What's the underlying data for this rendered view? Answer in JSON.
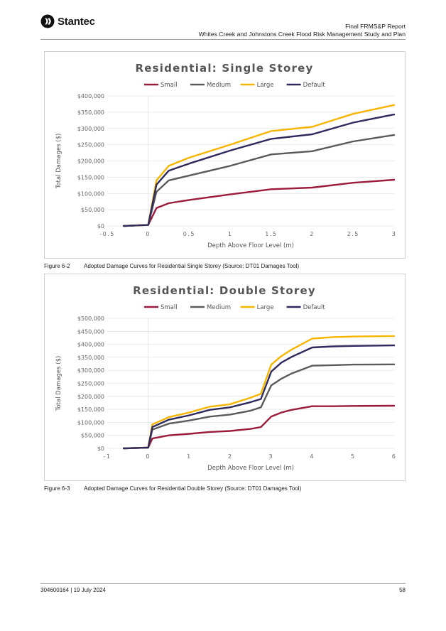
{
  "header": {
    "logo_text": "Stantec",
    "report_title": "Final FRMS&P Report",
    "report_subtitle": "Whites Creek and Johnstons Creek Flood Risk Management Study and Plan"
  },
  "footer": {
    "doc_ref": "304600164 | 19 July 2024",
    "page_number": "58"
  },
  "colors": {
    "small": "#9b1b3b",
    "medium": "#5a5a5a",
    "large": "#f7b500",
    "default": "#2e2a5e"
  },
  "captions": [
    {
      "number": "Figure 6-2",
      "text": "Adopted Damage Curves for Residential Single Storey (Source: DT01 Damages Tool)"
    },
    {
      "number": "Figure 6-3",
      "text": "Adopted Damage Curves for Residential Double Storey (Source: DT01 Damages Tool)"
    }
  ],
  "chart_data": [
    {
      "type": "line",
      "title": "Residential: Single Storey",
      "xlabel": "Depth Above Floor Level (m)",
      "ylabel": "Total Damages ($)",
      "xlim": [
        -0.5,
        3
      ],
      "ylim": [
        0,
        400000
      ],
      "x_ticks": [
        -0.5,
        0,
        0.5,
        1,
        1.5,
        2,
        2.5,
        3
      ],
      "x_tick_labels": [
        "-0.5",
        "0",
        "0.5",
        "1",
        "1.5",
        "2",
        "2.5",
        "3"
      ],
      "y_ticks": [
        0,
        50000,
        100000,
        150000,
        200000,
        250000,
        300000,
        350000,
        400000
      ],
      "y_tick_labels": [
        "$0",
        "$50,000",
        "$100,000",
        "$150,000",
        "$200,000",
        "$250,000",
        "$300,000",
        "$350,000",
        "$400,000"
      ],
      "grid": true,
      "legend_position": "top",
      "series": [
        {
          "name": "Small",
          "color": "#9b1b3b",
          "x": [
            -0.3,
            0,
            0.1,
            0.25,
            0.5,
            1,
            1.5,
            2,
            2.5,
            3
          ],
          "y": [
            0,
            3000,
            55000,
            70000,
            80000,
            97000,
            113000,
            118000,
            133000,
            142000
          ]
        },
        {
          "name": "Medium",
          "color": "#5a5a5a",
          "x": [
            -0.3,
            0,
            0.1,
            0.25,
            0.5,
            1,
            1.5,
            2,
            2.5,
            3
          ],
          "y": [
            0,
            3000,
            105000,
            140000,
            155000,
            185000,
            220000,
            230000,
            260000,
            280000
          ]
        },
        {
          "name": "Large",
          "color": "#f7b500",
          "x": [
            -0.3,
            0,
            0.1,
            0.25,
            0.5,
            1,
            1.5,
            2,
            2.5,
            3
          ],
          "y": [
            0,
            3000,
            140000,
            185000,
            210000,
            250000,
            292000,
            305000,
            345000,
            372000
          ]
        },
        {
          "name": "Default",
          "color": "#2e2a5e",
          "x": [
            -0.3,
            0,
            0.1,
            0.25,
            0.5,
            1,
            1.5,
            2,
            2.5,
            3
          ],
          "y": [
            0,
            3000,
            127000,
            170000,
            192000,
            232000,
            268000,
            282000,
            318000,
            343000
          ]
        }
      ]
    },
    {
      "type": "line",
      "title": "Residential: Double Storey",
      "xlabel": "Depth Above Floor Level (m)",
      "ylabel": "Total Damages ($)",
      "xlim": [
        -1,
        6
      ],
      "ylim": [
        0,
        500000
      ],
      "x_ticks": [
        -1,
        0,
        1,
        2,
        3,
        4,
        5,
        6
      ],
      "x_tick_labels": [
        "-1",
        "0",
        "1",
        "2",
        "3",
        "4",
        "5",
        "6"
      ],
      "y_ticks": [
        0,
        50000,
        100000,
        150000,
        200000,
        250000,
        300000,
        350000,
        400000,
        450000,
        500000
      ],
      "y_tick_labels": [
        "$0",
        "$50,000",
        "$100,000",
        "$150,000",
        "$200,000",
        "$250,000",
        "$300,000",
        "$350,000",
        "$400,000",
        "$450,000",
        "$500,000"
      ],
      "grid": true,
      "legend_position": "top",
      "series": [
        {
          "name": "Small",
          "color": "#9b1b3b",
          "x": [
            -0.6,
            0,
            0.1,
            0.5,
            1,
            1.5,
            2,
            2.5,
            2.75,
            3,
            3.25,
            3.5,
            4,
            4.5,
            5,
            6
          ],
          "y": [
            0,
            3000,
            38000,
            50000,
            56000,
            63000,
            67000,
            75000,
            82000,
            122000,
            138000,
            148000,
            162000,
            162000,
            163000,
            164000
          ]
        },
        {
          "name": "Medium",
          "color": "#5a5a5a",
          "x": [
            -0.6,
            0,
            0.1,
            0.5,
            1,
            1.5,
            2,
            2.5,
            2.75,
            3,
            3.25,
            3.5,
            4,
            4.5,
            5,
            6
          ],
          "y": [
            0,
            3000,
            72000,
            95000,
            107000,
            122000,
            130000,
            145000,
            158000,
            242000,
            268000,
            288000,
            318000,
            320000,
            322000,
            323000
          ]
        },
        {
          "name": "Large",
          "color": "#f7b500",
          "x": [
            -0.6,
            0,
            0.1,
            0.5,
            1,
            1.5,
            2,
            2.5,
            2.75,
            3,
            3.25,
            3.5,
            4,
            4.5,
            5,
            6
          ],
          "y": [
            0,
            3000,
            92000,
            120000,
            138000,
            160000,
            170000,
            195000,
            210000,
            322000,
            355000,
            380000,
            422000,
            428000,
            430000,
            432000
          ]
        },
        {
          "name": "Default",
          "color": "#2e2a5e",
          "x": [
            -0.6,
            0,
            0.1,
            0.5,
            1,
            1.5,
            2,
            2.5,
            2.75,
            3,
            3.25,
            3.5,
            4,
            4.5,
            5,
            6
          ],
          "y": [
            0,
            3000,
            82000,
            110000,
            127000,
            148000,
            158000,
            178000,
            190000,
            295000,
            330000,
            352000,
            388000,
            392000,
            394000,
            396000
          ]
        }
      ]
    }
  ]
}
